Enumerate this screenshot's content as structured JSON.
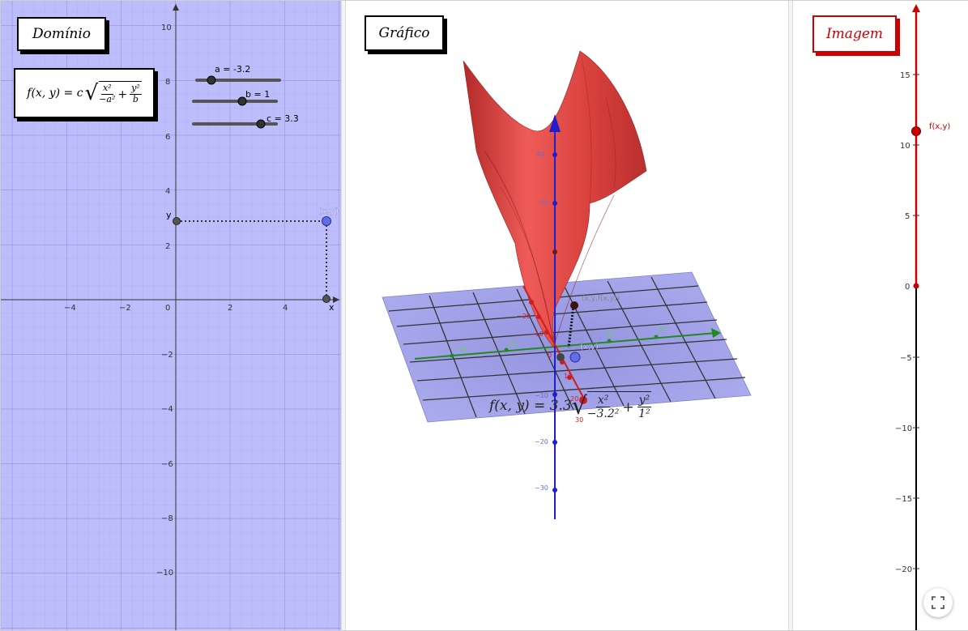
{
  "domain_view": {
    "title": "Domínio",
    "formula": {
      "lhs": "f(x, y) = c",
      "num1": "x²",
      "den1": "−a²",
      "num2": "y²",
      "den2": "b"
    },
    "sliders": [
      {
        "label": "a = -3.2",
        "value": -3.2
      },
      {
        "label": "b = 1",
        "value": 1
      },
      {
        "label": "c = 3.3",
        "value": 3.3
      }
    ],
    "x_ticks": [
      "−4",
      "−2",
      "0",
      "2",
      "4"
    ],
    "y_ticks": [
      "10",
      "8",
      "6",
      "4",
      "2",
      "−2",
      "−4",
      "−6",
      "−8",
      "−10"
    ],
    "point_label": "(x,y)",
    "x_axis_label": "x",
    "y_axis_label": "y",
    "point": {
      "x": 5.6,
      "y": 2.9
    }
  },
  "graph_view": {
    "title": "Gráfico",
    "formula_text": "f(x, y) = 3.3",
    "formula_num1": "x²",
    "formula_den1": "−3.2²",
    "formula_num2": "y²",
    "formula_den2": "1²",
    "z_ticks": [
      "40",
      "30",
      "−10",
      "−20",
      "−30"
    ],
    "x_ticks": [
      "−20",
      "−10",
      "0",
      "10",
      "20",
      "30"
    ],
    "y_ticks": [
      "−20",
      "−10",
      "10",
      "20"
    ],
    "point_label": "(x,y)",
    "fpoint_label": "(x,y,f(x,y))",
    "colors": {
      "surface": "#d9403d",
      "plane": "#9b9be6",
      "z_axis": "#1f1fcc",
      "y_axis": "#1f8a1f",
      "x_axis": "#cc1f1f"
    }
  },
  "image_view": {
    "title": "Imagem",
    "ticks": [
      "15",
      "10",
      "5",
      "0",
      "−5",
      "−10",
      "−15",
      "−20"
    ],
    "point_label": "f(x,y)",
    "point_value": 11,
    "colors": {
      "accent": "#cc0000"
    }
  },
  "fullscreen": {
    "icon": "fullscreen-icon"
  }
}
